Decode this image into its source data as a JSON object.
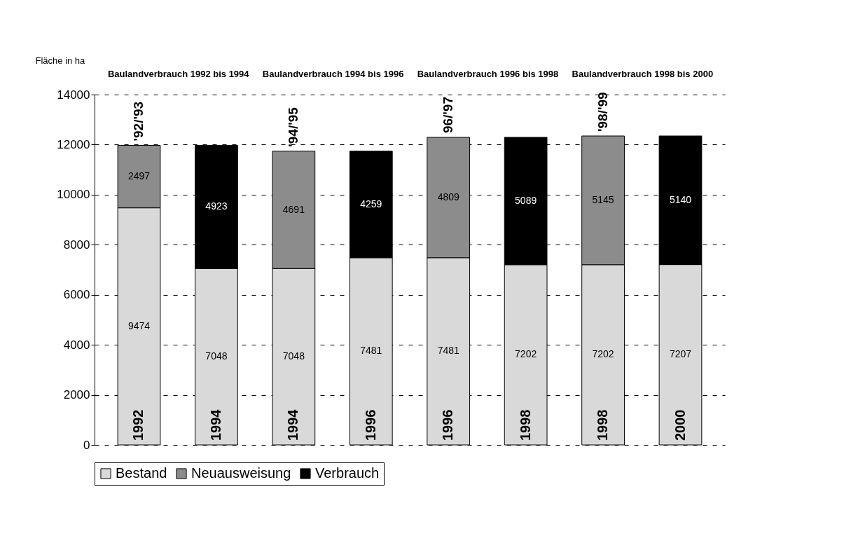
{
  "chart_data": {
    "type": "bar",
    "stacked": true,
    "ylabel": "Fläche in ha",
    "categories": [
      "1992",
      "1994",
      "1994",
      "1996",
      "1996",
      "1998",
      "1998",
      "2000"
    ],
    "series": [
      {
        "name": "Bestand",
        "color": "#d9d9d9",
        "values": [
          9474,
          7048,
          7048,
          7481,
          7481,
          7202,
          7202,
          7207
        ]
      },
      {
        "name": "Neuausweisung",
        "color": "#8c8c8c",
        "values": [
          2497,
          null,
          4691,
          null,
          4809,
          null,
          5145,
          null
        ]
      },
      {
        "name": "Verbrauch",
        "color": "#000000",
        "values": [
          null,
          4923,
          null,
          4259,
          null,
          5089,
          null,
          5140
        ]
      }
    ],
    "ylim": [
      0,
      14000
    ],
    "yticks": [
      0,
      2000,
      4000,
      6000,
      8000,
      10000,
      12000,
      14000
    ],
    "grid": "y",
    "legend": "bottom",
    "data_labels": true,
    "annotations": [
      "Baulandverbrauch 1992 bis 1994",
      "Baulandverbrauch 1994 bis 1996",
      "Baulandverbrauch 1996 bis 1998",
      "Baulandverbrauch 1998 bis 2000",
      "'92/'93",
      "'94/'95",
      "96/'97",
      "'98/'99"
    ]
  }
}
